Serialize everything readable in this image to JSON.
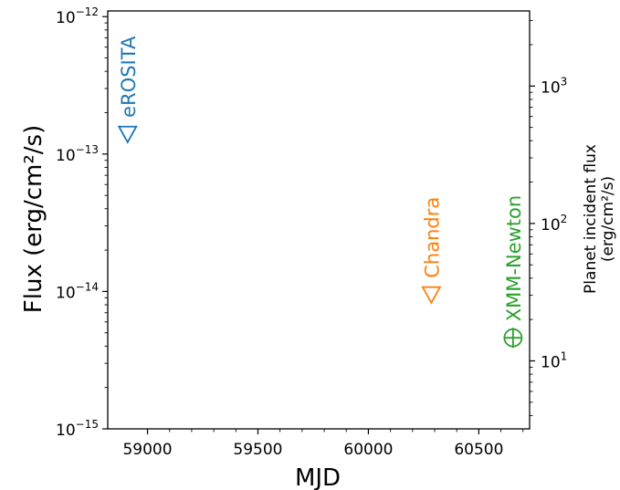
{
  "chart_data": {
    "type": "scatter",
    "title": "",
    "xlabel": "MJD",
    "ylabel": "Flux (erg/cm²/s)",
    "y2label_line1": "Planet incident flux",
    "y2label_line2": "(erg/cm²/s)",
    "xlim": [
      58820,
      60730
    ],
    "ylim": [
      1e-15,
      1.1e-12
    ],
    "yscale": "log",
    "y2scale": "log",
    "y2lim": [
      3.2,
      3520
    ],
    "x_ticks": [
      59000,
      59500,
      60000,
      60500
    ],
    "x_tick_labels": [
      "59000",
      "59500",
      "60000",
      "60500"
    ],
    "y_ticks": [
      {
        "value": 1e-15,
        "mant": "10",
        "exp": "−15"
      },
      {
        "value": 1e-14,
        "mant": "10",
        "exp": "−14"
      },
      {
        "value": 1e-13,
        "mant": "10",
        "exp": "−13"
      },
      {
        "value": 1e-12,
        "mant": "10",
        "exp": "−12"
      }
    ],
    "y2_ticks": [
      {
        "value": 10,
        "mant": "10",
        "exp": "1"
      },
      {
        "value": 100,
        "mant": "10",
        "exp": "2"
      },
      {
        "value": 1000,
        "mant": "10",
        "exp": "3"
      }
    ],
    "grid": false,
    "series": [
      {
        "name": "eROSITA",
        "x": 58910,
        "y": 1.4e-13,
        "marker": "triangle-down-open",
        "upper_limit": true,
        "color": "#1f77b4"
      },
      {
        "name": "Chandra",
        "x": 60285,
        "y": 9.5e-15,
        "marker": "triangle-down-open",
        "upper_limit": true,
        "color": "#ff7f0e"
      },
      {
        "name": "XMM-Newton",
        "x": 60655,
        "y": 4.6e-15,
        "marker": "circle-open",
        "upper_limit": false,
        "color": "#2ca02c"
      }
    ]
  }
}
